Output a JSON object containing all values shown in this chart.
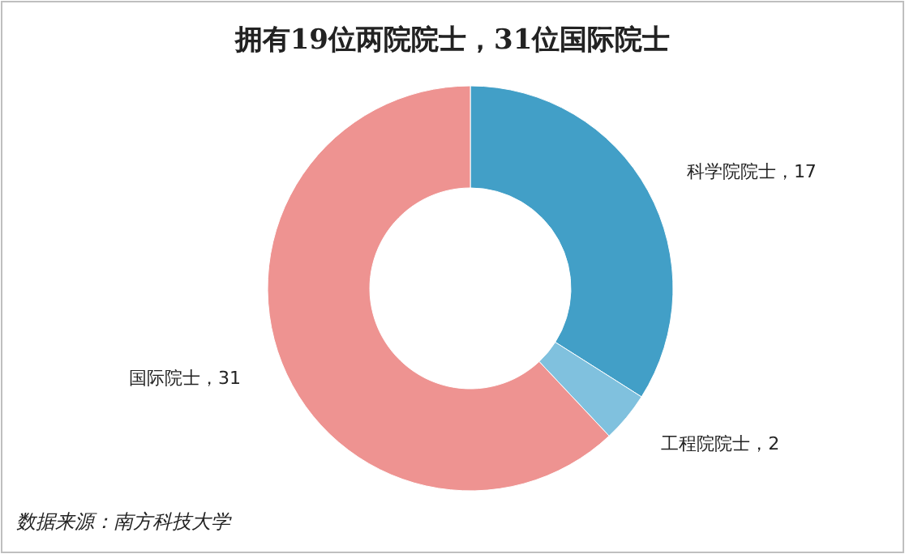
{
  "chart_data": {
    "type": "donut",
    "title": "拥有19位两院院士，31位国际院士",
    "categories": [
      "科学院院士",
      "工程院院士",
      "国际院士"
    ],
    "values": [
      17,
      2,
      31
    ],
    "colors": [
      "#429fc7",
      "#80c1de",
      "#ee9391"
    ],
    "value_labels": [
      "，17",
      "，2",
      "，31"
    ],
    "annotations": [
      "数据来源：南方科技大学"
    ],
    "legend": false
  }
}
